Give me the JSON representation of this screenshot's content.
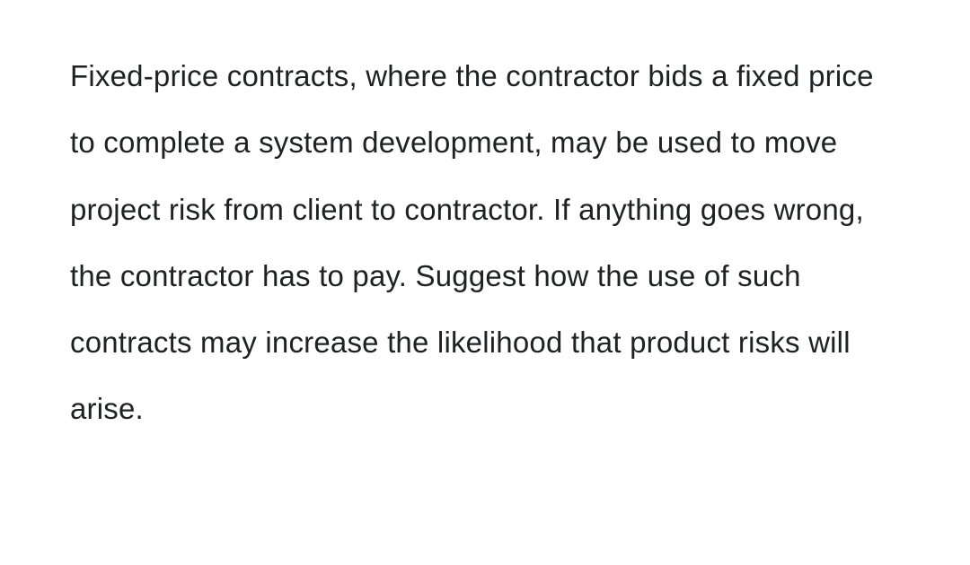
{
  "document": {
    "paragraph": "Fixed-price contracts, where the contractor bids a fixed price to complete a system development, may be used to move project risk from client to contractor. If anything goes wrong, the contractor has to pay. Suggest how the use of such contracts may increase the likelihood that product risks will arise.",
    "text_color": "#202124",
    "background_color": "#ffffff",
    "font_size": 33,
    "line_height": 2.25,
    "font_family": "Arial, Helvetica, sans-serif"
  }
}
